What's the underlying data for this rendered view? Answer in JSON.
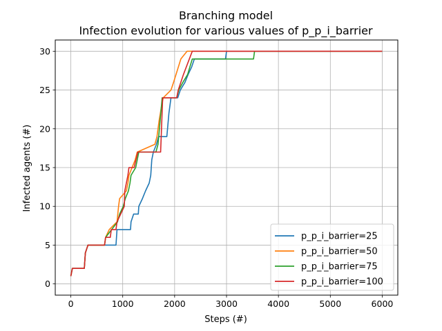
{
  "chart_data": {
    "type": "line",
    "title": "Branching model",
    "subtitle": "Infection evolution for various values of p_p_i_barrier",
    "xlabel": "Steps (#)",
    "ylabel": "Infected agents (#)",
    "xlim": [
      -300,
      6300
    ],
    "ylim": [
      -1.45,
      31.45
    ],
    "xticks": [
      0,
      1000,
      2000,
      3000,
      4000,
      5000,
      6000
    ],
    "yticks": [
      0,
      5,
      10,
      15,
      20,
      25,
      30
    ],
    "grid": true,
    "legend_position": "lower-right",
    "series": [
      {
        "name": "p_p_i_barrier=25",
        "color": "#1f77b4",
        "points": [
          [
            0,
            1
          ],
          [
            30,
            2
          ],
          [
            260,
            2
          ],
          [
            280,
            4
          ],
          [
            330,
            5
          ],
          [
            870,
            5
          ],
          [
            890,
            7
          ],
          [
            1150,
            7
          ],
          [
            1160,
            8
          ],
          [
            1210,
            9
          ],
          [
            1300,
            9
          ],
          [
            1310,
            10
          ],
          [
            1380,
            11
          ],
          [
            1440,
            12
          ],
          [
            1510,
            13
          ],
          [
            1540,
            14
          ],
          [
            1560,
            16
          ],
          [
            1590,
            17
          ],
          [
            1650,
            18
          ],
          [
            1690,
            19
          ],
          [
            1850,
            19
          ],
          [
            1890,
            22
          ],
          [
            1910,
            23
          ],
          [
            1930,
            24
          ],
          [
            2060,
            24
          ],
          [
            2110,
            25
          ],
          [
            2200,
            26
          ],
          [
            2260,
            27
          ],
          [
            2330,
            28
          ],
          [
            2380,
            29
          ],
          [
            2980,
            29
          ],
          [
            3000,
            30
          ],
          [
            6000,
            30
          ]
        ]
      },
      {
        "name": "p_p_i_barrier=50",
        "color": "#ff7f0e",
        "points": [
          [
            0,
            1
          ],
          [
            30,
            2
          ],
          [
            260,
            2
          ],
          [
            280,
            4
          ],
          [
            330,
            5
          ],
          [
            650,
            5
          ],
          [
            670,
            6
          ],
          [
            740,
            7
          ],
          [
            890,
            8
          ],
          [
            920,
            10
          ],
          [
            940,
            11
          ],
          [
            1070,
            12
          ],
          [
            1100,
            13
          ],
          [
            1120,
            14
          ],
          [
            1180,
            15
          ],
          [
            1240,
            16
          ],
          [
            1280,
            17
          ],
          [
            1620,
            18
          ],
          [
            1660,
            19
          ],
          [
            1700,
            21
          ],
          [
            1750,
            23
          ],
          [
            1780,
            24
          ],
          [
            1930,
            25
          ],
          [
            1980,
            26
          ],
          [
            2120,
            29
          ],
          [
            2240,
            30
          ],
          [
            6000,
            30
          ]
        ]
      },
      {
        "name": "p_p_i_barrier=75",
        "color": "#2ca02c",
        "points": [
          [
            0,
            1
          ],
          [
            30,
            2
          ],
          [
            260,
            2
          ],
          [
            280,
            4
          ],
          [
            330,
            5
          ],
          [
            650,
            5
          ],
          [
            670,
            6
          ],
          [
            900,
            8
          ],
          [
            940,
            9
          ],
          [
            1010,
            10
          ],
          [
            1050,
            11
          ],
          [
            1110,
            12
          ],
          [
            1140,
            13
          ],
          [
            1160,
            14
          ],
          [
            1250,
            15
          ],
          [
            1310,
            17
          ],
          [
            1640,
            17
          ],
          [
            1680,
            18
          ],
          [
            1760,
            24
          ],
          [
            2040,
            24
          ],
          [
            2080,
            25
          ],
          [
            2160,
            26
          ],
          [
            2250,
            27
          ],
          [
            2340,
            29
          ],
          [
            3520,
            29
          ],
          [
            3540,
            30
          ],
          [
            6000,
            30
          ]
        ]
      },
      {
        "name": "p_p_i_barrier=100",
        "color": "#d62728",
        "points": [
          [
            0,
            1
          ],
          [
            30,
            2
          ],
          [
            260,
            2
          ],
          [
            280,
            4
          ],
          [
            330,
            5
          ],
          [
            650,
            5
          ],
          [
            670,
            6
          ],
          [
            760,
            6
          ],
          [
            780,
            7
          ],
          [
            870,
            7
          ],
          [
            890,
            8
          ],
          [
            960,
            9
          ],
          [
            1030,
            10
          ],
          [
            1040,
            12
          ],
          [
            1100,
            14
          ],
          [
            1120,
            15
          ],
          [
            1220,
            15
          ],
          [
            1290,
            17
          ],
          [
            1730,
            17
          ],
          [
            1770,
            24
          ],
          [
            2040,
            24
          ],
          [
            2070,
            25
          ],
          [
            2170,
            27
          ],
          [
            2340,
            30
          ],
          [
            6000,
            30
          ]
        ]
      }
    ]
  }
}
